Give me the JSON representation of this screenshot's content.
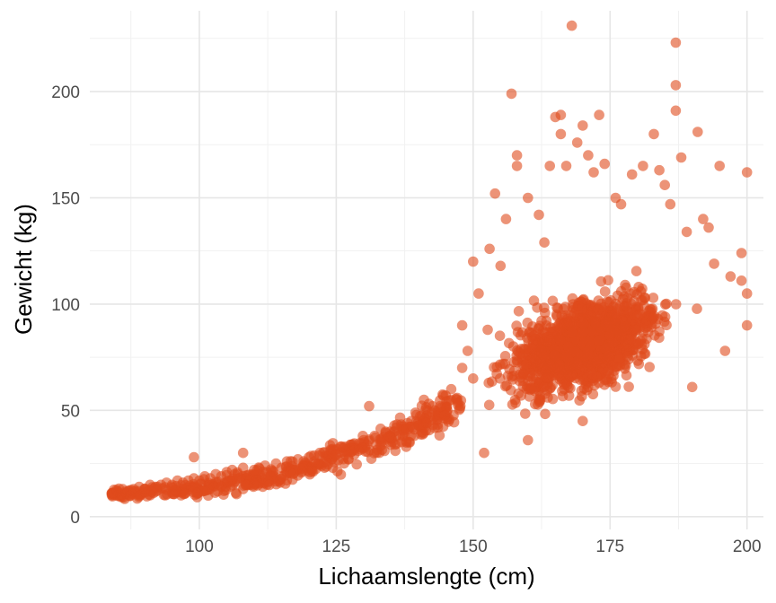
{
  "chart_data": {
    "type": "scatter",
    "title": "",
    "xlabel": "Lichaamslengte (cm)",
    "ylabel": "Gewicht (kg)",
    "xlim": [
      80,
      203
    ],
    "ylim": [
      -6,
      238
    ],
    "x_ticks": [
      100,
      125,
      150,
      175,
      200
    ],
    "y_ticks": [
      0,
      50,
      100,
      150,
      200
    ],
    "x_tick_labels": [
      "100",
      "125",
      "150",
      "175",
      "200"
    ],
    "y_tick_labels": [
      "0",
      "50",
      "100",
      "150",
      "200"
    ],
    "grid": true,
    "point_color": "#e04b1c",
    "point_opacity": 0.6,
    "series": [
      {
        "points_children": [
          [
            84,
            11
          ],
          [
            85,
            12
          ],
          [
            86,
            13
          ],
          [
            87,
            12
          ],
          [
            88,
            13
          ],
          [
            89,
            14
          ],
          [
            90,
            13
          ],
          [
            91,
            15
          ],
          [
            92,
            14
          ],
          [
            93,
            15
          ],
          [
            94,
            16
          ],
          [
            95,
            15
          ],
          [
            96,
            17
          ],
          [
            97,
            16
          ],
          [
            98,
            17
          ],
          [
            99,
            18
          ],
          [
            99,
            28
          ],
          [
            100,
            17
          ],
          [
            101,
            19
          ],
          [
            102,
            18
          ],
          [
            103,
            20
          ],
          [
            104,
            19
          ],
          [
            105,
            21
          ],
          [
            106,
            22
          ],
          [
            107,
            20
          ],
          [
            108,
            23
          ],
          [
            108,
            30
          ],
          [
            110,
            22
          ],
          [
            112,
            24
          ],
          [
            114,
            25
          ],
          [
            115,
            23
          ],
          [
            116,
            26
          ],
          [
            118,
            27
          ],
          [
            120,
            28
          ],
          [
            121,
            26
          ],
          [
            122,
            30
          ],
          [
            124,
            31
          ],
          [
            125,
            29
          ],
          [
            126,
            33
          ],
          [
            128,
            34
          ],
          [
            129,
            31
          ],
          [
            130,
            36
          ],
          [
            131,
            52
          ],
          [
            132,
            38
          ],
          [
            134,
            40
          ],
          [
            135,
            37
          ],
          [
            136,
            42
          ],
          [
            138,
            44
          ],
          [
            140,
            43
          ],
          [
            141,
            55
          ],
          [
            142,
            47
          ],
          [
            143,
            50
          ],
          [
            144,
            52
          ],
          [
            145,
            57
          ],
          [
            146,
            60
          ],
          [
            147,
            55
          ],
          [
            148,
            70
          ],
          [
            148,
            90
          ],
          [
            149,
            78
          ],
          [
            150,
            65
          ],
          [
            150,
            120
          ],
          [
            151,
            105
          ]
        ]
      },
      {
        "points_outliers": [
          [
            152,
            30
          ],
          [
            153,
            126
          ],
          [
            154,
            152
          ],
          [
            155,
            118
          ],
          [
            156,
            140
          ],
          [
            157,
            199
          ],
          [
            158,
            165
          ],
          [
            158,
            170
          ],
          [
            160,
            150
          ],
          [
            160,
            36
          ],
          [
            162,
            142
          ],
          [
            163,
            129
          ],
          [
            164,
            165
          ],
          [
            165,
            188
          ],
          [
            166,
            189
          ],
          [
            166,
            180
          ],
          [
            167,
            165
          ],
          [
            168,
            231
          ],
          [
            169,
            176
          ],
          [
            170,
            184
          ],
          [
            170,
            45
          ],
          [
            171,
            170
          ],
          [
            172,
            162
          ],
          [
            173,
            189
          ],
          [
            174,
            166
          ],
          [
            176,
            150
          ],
          [
            177,
            147
          ],
          [
            179,
            161
          ],
          [
            181,
            165
          ],
          [
            183,
            180
          ],
          [
            184,
            163
          ],
          [
            185,
            156
          ],
          [
            186,
            147
          ],
          [
            187,
            223
          ],
          [
            187,
            203
          ],
          [
            187,
            191
          ],
          [
            188,
            169
          ],
          [
            189,
            134
          ],
          [
            190,
            61
          ],
          [
            191,
            181
          ],
          [
            192,
            140
          ],
          [
            193,
            136
          ],
          [
            194,
            119
          ],
          [
            195,
            165
          ],
          [
            196,
            78
          ],
          [
            197,
            113
          ],
          [
            199,
            124
          ],
          [
            199,
            111
          ],
          [
            200,
            162
          ],
          [
            200,
            105
          ],
          [
            200,
            90
          ]
        ]
      }
    ]
  }
}
